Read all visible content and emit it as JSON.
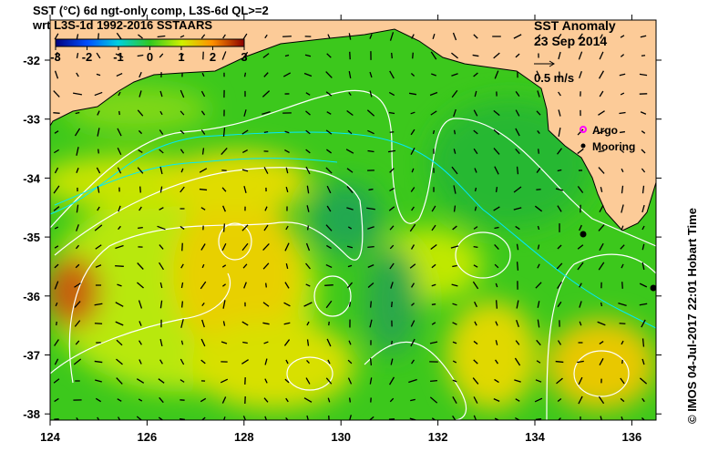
{
  "header": {
    "line1": "SST (°C) 6d ngt-only comp, L3S-6d QL>=2",
    "line2": "wrt L3S-1d 1992-2016 SSTAARS"
  },
  "colorbar": {
    "ticks": [
      "-3",
      "-2",
      "-1",
      "0",
      "1",
      "2",
      "3"
    ],
    "colors": [
      "#00007f",
      "#0050ff",
      "#00d0e0",
      "#30c820",
      "#d0f000",
      "#ff9000",
      "#8b0000"
    ]
  },
  "map": {
    "title": "SST Anomaly",
    "date": "23 Sep 2014",
    "scale_label": "0.5 m/s",
    "legend": [
      {
        "label": "Argo",
        "color": "#ff00ff"
      },
      {
        "label": "Mooring",
        "color": "#000000"
      }
    ],
    "x_ticks": [
      "124",
      "126",
      "128",
      "130",
      "132",
      "134",
      "136"
    ],
    "y_ticks": [
      "-32",
      "-33",
      "-34",
      "-35",
      "-36",
      "-37",
      "-38"
    ],
    "land_color": "#fccb98",
    "ocean_color": "#3cc81c"
  },
  "credit": "© IMOS 04-Jul-2017 22:01 Hobart Time"
}
